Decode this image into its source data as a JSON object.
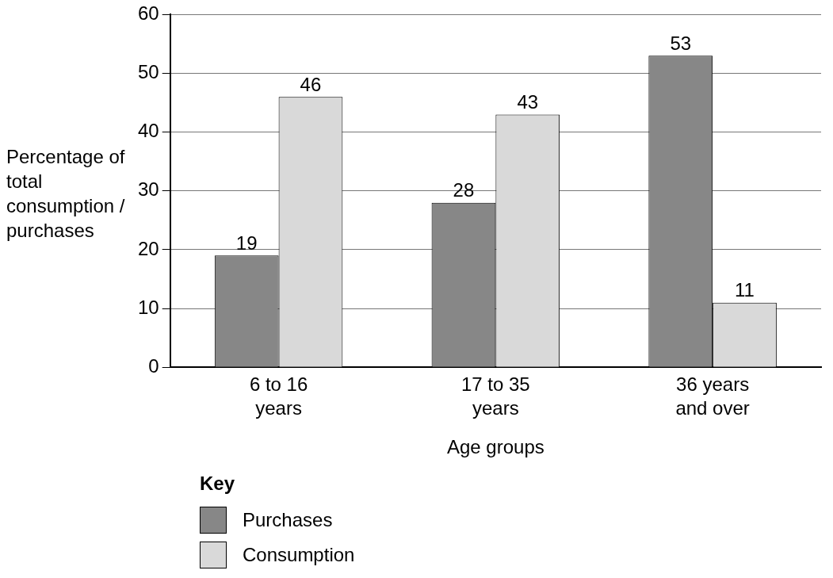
{
  "chart_data": {
    "type": "bar",
    "xlabel": "Age groups",
    "ylabel": "Percentage of total consumption / purchases",
    "legend_title": "Key",
    "categories": [
      "6 to 16 years",
      "17 to 35 years",
      "36 years and over"
    ],
    "series": [
      {
        "name": "Purchases",
        "color": "#878787",
        "values": [
          19,
          28,
          53
        ]
      },
      {
        "name": "Consumption",
        "color": "#d9d9d9",
        "values": [
          46,
          43,
          11
        ]
      }
    ],
    "ylim": [
      0,
      60
    ],
    "yticks": [
      0,
      10,
      20,
      30,
      40,
      50,
      60
    ],
    "grid": "y",
    "legend": "bottom",
    "data_labels": true
  }
}
